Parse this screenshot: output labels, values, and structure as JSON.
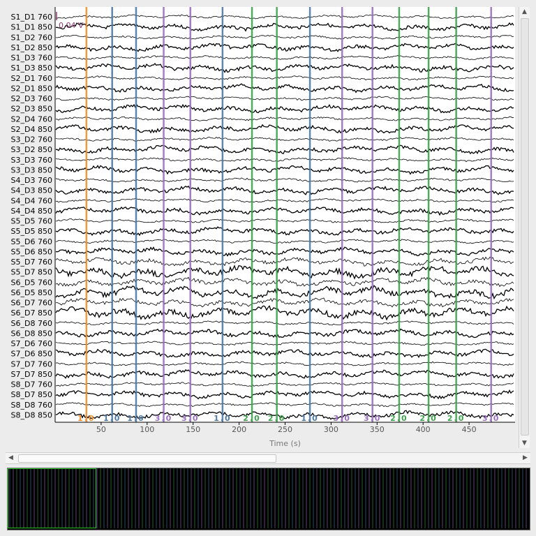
{
  "channels": [
    "S1_D1 760",
    "S1_D1 850",
    "S1_D2 760",
    "S1_D2 850",
    "S1_D3 760",
    "S1_D3 850",
    "S2_D1 760",
    "S2_D1 850",
    "S2_D3 760",
    "S2_D3 850",
    "S2_D4 760",
    "S2_D4 850",
    "S3_D2 760",
    "S3_D2 850",
    "S3_D3 760",
    "S3_D3 850",
    "S4_D3 760",
    "S4_D3 850",
    "S4_D4 760",
    "S4_D4 850",
    "S5_D5 760",
    "S5_D5 850",
    "S5_D6 760",
    "S5_D6 850",
    "S5_D7 760",
    "S5_D7 850",
    "S6_D5 760",
    "S6_D5 850",
    "S6_D7 760",
    "S6_D7 850",
    "S6_D8 760",
    "S6_D8 850",
    "S7_D6 760",
    "S7_D6 850",
    "S7_D7 760",
    "S7_D7 850",
    "S8_D7 760",
    "S8_D7 850",
    "S8_D8 760",
    "S8_D8 850"
  ],
  "scale_label": "0.04 V",
  "x_axis": {
    "label": "Time (s)",
    "ticks": [
      "50",
      "100",
      "150",
      "200",
      "250",
      "300",
      "350",
      "400",
      "450"
    ],
    "range": [
      0,
      500
    ]
  },
  "annotations": [
    {
      "time": 34,
      "label": "1.0",
      "color": "#f28e2b"
    },
    {
      "time": 62,
      "label": "1.0",
      "color": "#4e79a7"
    },
    {
      "time": 88,
      "label": "1.0",
      "color": "#4e79a7"
    },
    {
      "time": 118,
      "label": "3.0",
      "color": "#9b6fc0"
    },
    {
      "time": 147,
      "label": "3.0",
      "color": "#9b6fc0"
    },
    {
      "time": 182,
      "label": "1.0",
      "color": "#4e79a7"
    },
    {
      "time": 214,
      "label": "2.0",
      "color": "#3fa34d"
    },
    {
      "time": 241,
      "label": "2.0",
      "color": "#3fa34d"
    },
    {
      "time": 277,
      "label": "1.0",
      "color": "#4e79a7"
    },
    {
      "time": 312,
      "label": "3.0",
      "color": "#9b6fc0"
    },
    {
      "time": 345,
      "label": "3.0",
      "color": "#9b6fc0"
    },
    {
      "time": 374,
      "label": "2.0",
      "color": "#3fa34d"
    },
    {
      "time": 406,
      "label": "2.0",
      "color": "#3fa34d"
    },
    {
      "time": 436,
      "label": "2.0",
      "color": "#3fa34d"
    },
    {
      "time": 474,
      "label": "3.0",
      "color": "#9b6fc0"
    }
  ],
  "overview": {
    "marker_colors": [
      "#4e79a7",
      "#9b6fc0",
      "#3fa34d"
    ],
    "view_fraction": 0.17
  },
  "icons": {
    "scroll_up": "▲",
    "scroll_down": "▼",
    "scroll_left": "◀",
    "scroll_right": "▶"
  }
}
